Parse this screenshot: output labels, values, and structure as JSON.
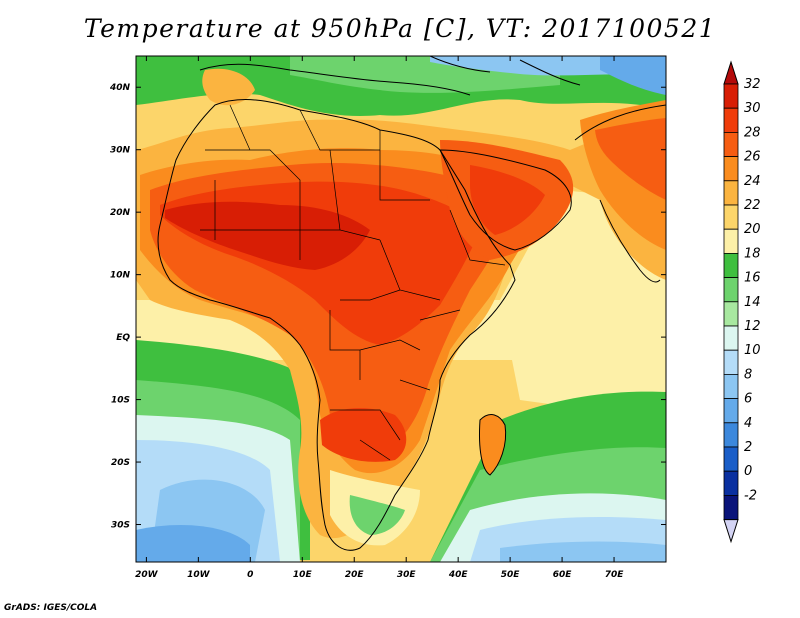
{
  "header": {
    "title": "Temperature at 950hPa [C], VT: 2017100521"
  },
  "footer": {
    "credit": "GrADS: IGES/COLA"
  },
  "map": {
    "lon_range": [
      -22,
      80
    ],
    "lat_range": [
      -36,
      45
    ],
    "lon_labels": [
      "20W",
      "10W",
      "0",
      "10E",
      "20E",
      "30E",
      "40E",
      "50E",
      "60E",
      "70E"
    ],
    "lat_labels": [
      "40N",
      "30N",
      "20N",
      "10N",
      "EQ",
      "10S",
      "20S",
      "30S"
    ]
  },
  "colorbar": {
    "levels": [
      "32",
      "30",
      "28",
      "26",
      "24",
      "22",
      "20",
      "18",
      "16",
      "14",
      "12",
      "10",
      "8",
      "6",
      "4",
      "2",
      "0",
      "-2"
    ],
    "colors_top_to_bottom": [
      "#d81e05",
      "#f03c0a",
      "#f65d12",
      "#fa8c1e",
      "#fbb440",
      "#fcd56a",
      "#fdf0a8",
      "#3fbf3f",
      "#6dd36d",
      "#a8e8a0",
      "#dcf6f0",
      "#b4dcf8",
      "#8cc6f2",
      "#64aaea",
      "#3c88dc",
      "#1a5ec8",
      "#0a30a0",
      "#0a147a"
    ],
    "over_color": "#b40a0a",
    "under_color": "#d4d4f4"
  }
}
